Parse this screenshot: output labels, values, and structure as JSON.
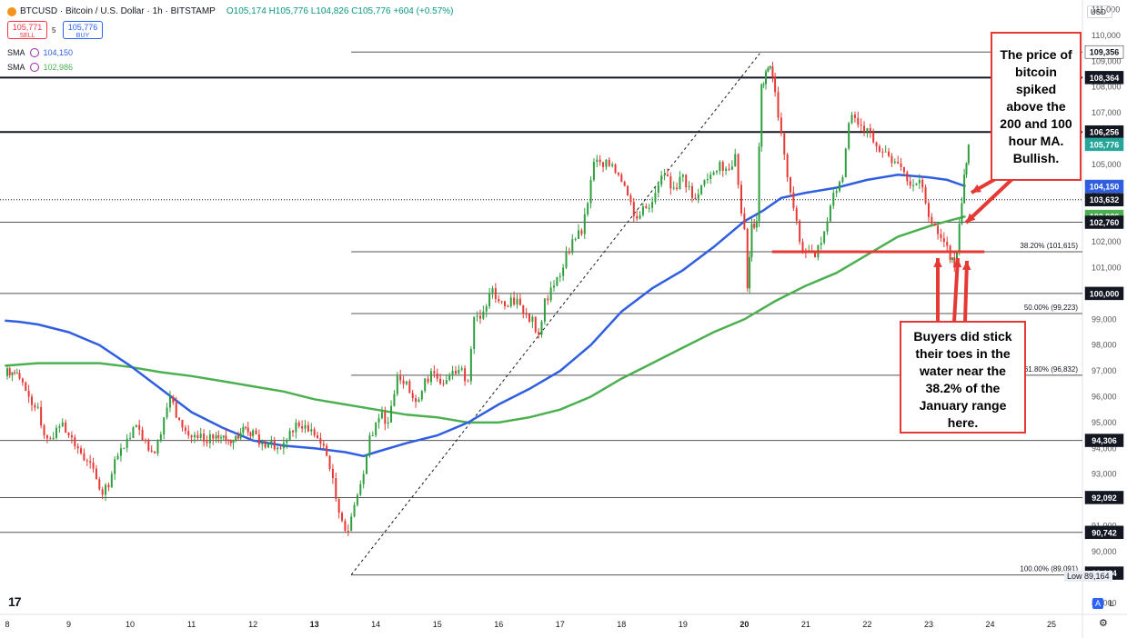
{
  "header": {
    "symbol_line": "BTCUSD · Bitcoin / U.S. Dollar · 1h · BITSTAMP",
    "ohlc": "O105,174 H105,776 L104,826 C105,776 +604 (+0.57%)",
    "sell_price": "105,771",
    "sell_label": "SELL",
    "spread": "5",
    "buy_price": "105,776",
    "buy_label": "BUY",
    "sma1_label": "SMA",
    "sma1_value": "104,150",
    "sma2_label": "SMA",
    "sma2_value": "102,986",
    "currency": "USD"
  },
  "colors": {
    "up": "#26a69a",
    "down": "#ef5350",
    "green_candle": "#2e9e3e",
    "red_candle": "#e53935",
    "sma100": "#2f5fe0",
    "sma200": "#4caf50",
    "annotation": "#e53935"
  },
  "chart_data": {
    "type": "candlestick",
    "x_ticks": [
      "8",
      "9",
      "10",
      "11",
      "12",
      "13",
      "14",
      "15",
      "16",
      "17",
      "18",
      "19",
      "20",
      "21",
      "22",
      "23",
      "24",
      "25"
    ],
    "y_ticks": [
      "111,000",
      "110,000",
      "109,000",
      "108,000",
      "107,000",
      "106,000",
      "105,000",
      "104,000",
      "103,000",
      "102,000",
      "101,000",
      "100,000",
      "99,000",
      "98,000",
      "97,000",
      "96,000",
      "95,000",
      "94,000",
      "93,000",
      "92,000",
      "91,000",
      "90,000",
      "89,000",
      "88,000"
    ],
    "ylim": [
      87600,
      111300
    ],
    "price_series": [
      [
        7.96,
        96800
      ],
      [
        8.0,
        97100
      ],
      [
        8.2,
        96700
      ],
      [
        8.35,
        96000
      ],
      [
        8.5,
        95600
      ],
      [
        8.6,
        94500
      ],
      [
        8.75,
        94400
      ],
      [
        8.9,
        95000
      ],
      [
        9.0,
        94500
      ],
      [
        9.15,
        94000
      ],
      [
        9.3,
        93500
      ],
      [
        9.45,
        92800
      ],
      [
        9.55,
        92200
      ],
      [
        9.7,
        93000
      ],
      [
        9.85,
        94000
      ],
      [
        10.0,
        94400
      ],
      [
        10.1,
        94900
      ],
      [
        10.25,
        94300
      ],
      [
        10.4,
        93800
      ],
      [
        10.55,
        95200
      ],
      [
        10.65,
        96000
      ],
      [
        10.8,
        95100
      ],
      [
        10.95,
        94500
      ],
      [
        11.1,
        94400
      ],
      [
        11.25,
        94200
      ],
      [
        11.4,
        94500
      ],
      [
        11.6,
        94300
      ],
      [
        11.8,
        94600
      ],
      [
        12.0,
        94700
      ],
      [
        12.15,
        94200
      ],
      [
        12.3,
        94300
      ],
      [
        12.45,
        94000
      ],
      [
        12.55,
        94300
      ],
      [
        12.7,
        95000
      ],
      [
        12.85,
        94900
      ],
      [
        13.0,
        94500
      ],
      [
        13.15,
        94100
      ],
      [
        13.25,
        93200
      ],
      [
        13.4,
        91500
      ],
      [
        13.55,
        90800
      ],
      [
        13.65,
        91800
      ],
      [
        13.8,
        93000
      ],
      [
        13.9,
        94500
      ],
      [
        14.0,
        95000
      ],
      [
        14.1,
        95400
      ],
      [
        14.2,
        95000
      ],
      [
        14.35,
        96800
      ],
      [
        14.5,
        96600
      ],
      [
        14.65,
        95800
      ],
      [
        14.8,
        96700
      ],
      [
        14.95,
        96900
      ],
      [
        15.1,
        96500
      ],
      [
        15.25,
        97000
      ],
      [
        15.4,
        97100
      ],
      [
        15.5,
        96600
      ],
      [
        15.6,
        99100
      ],
      [
        15.75,
        99300
      ],
      [
        15.9,
        100200
      ],
      [
        16.0,
        99700
      ],
      [
        16.15,
        99500
      ],
      [
        16.3,
        99800
      ],
      [
        16.45,
        99200
      ],
      [
        16.55,
        99100
      ],
      [
        16.65,
        98400
      ],
      [
        16.75,
        99800
      ],
      [
        16.9,
        100300
      ],
      [
        17.05,
        101000
      ],
      [
        17.2,
        102100
      ],
      [
        17.35,
        102300
      ],
      [
        17.45,
        103500
      ],
      [
        17.55,
        105100
      ],
      [
        17.7,
        104900
      ],
      [
        17.85,
        105000
      ],
      [
        17.95,
        104600
      ],
      [
        18.1,
        103800
      ],
      [
        18.25,
        102900
      ],
      [
        18.4,
        103300
      ],
      [
        18.55,
        103900
      ],
      [
        18.7,
        104600
      ],
      [
        18.85,
        104100
      ],
      [
        19.0,
        104600
      ],
      [
        19.15,
        103700
      ],
      [
        19.3,
        104200
      ],
      [
        19.45,
        104600
      ],
      [
        19.6,
        105100
      ],
      [
        19.75,
        104800
      ],
      [
        19.85,
        105400
      ],
      [
        19.95,
        103100
      ],
      [
        20.0,
        102500
      ],
      [
        20.05,
        100200
      ],
      [
        20.12,
        102700
      ],
      [
        20.2,
        102800
      ],
      [
        20.28,
        108100
      ],
      [
        20.35,
        108600
      ],
      [
        20.42,
        108800
      ],
      [
        20.5,
        107800
      ],
      [
        20.6,
        106200
      ],
      [
        20.7,
        104500
      ],
      [
        20.8,
        103300
      ],
      [
        20.9,
        102000
      ],
      [
        21.0,
        101600
      ],
      [
        21.15,
        101400
      ],
      [
        21.3,
        102400
      ],
      [
        21.45,
        103900
      ],
      [
        21.6,
        104500
      ],
      [
        21.7,
        106600
      ],
      [
        21.8,
        106800
      ],
      [
        21.9,
        106500
      ],
      [
        22.0,
        106400
      ],
      [
        22.15,
        105700
      ],
      [
        22.3,
        105500
      ],
      [
        22.45,
        105100
      ],
      [
        22.6,
        104700
      ],
      [
        22.75,
        104200
      ],
      [
        22.85,
        104400
      ],
      [
        22.95,
        103500
      ],
      [
        23.05,
        102700
      ],
      [
        23.15,
        102300
      ],
      [
        23.25,
        102000
      ],
      [
        23.35,
        101300
      ],
      [
        23.42,
        101000
      ],
      [
        23.5,
        102700
      ],
      [
        23.58,
        104600
      ],
      [
        23.65,
        105776
      ]
    ],
    "sma100": [
      [
        7.96,
        98950
      ],
      [
        8.2,
        98900
      ],
      [
        8.5,
        98800
      ],
      [
        9.0,
        98500
      ],
      [
        9.5,
        98000
      ],
      [
        10.0,
        97200
      ],
      [
        10.5,
        96300
      ],
      [
        11.0,
        95400
      ],
      [
        11.5,
        94800
      ],
      [
        12.0,
        94300
      ],
      [
        12.5,
        94100
      ],
      [
        13.0,
        94000
      ],
      [
        13.5,
        93850
      ],
      [
        13.8,
        93700
      ],
      [
        14.0,
        93850
      ],
      [
        14.5,
        94200
      ],
      [
        15.0,
        94500
      ],
      [
        15.5,
        95000
      ],
      [
        16.0,
        95700
      ],
      [
        16.5,
        96300
      ],
      [
        17.0,
        97000
      ],
      [
        17.5,
        98000
      ],
      [
        18.0,
        99300
      ],
      [
        18.5,
        100200
      ],
      [
        19.0,
        100900
      ],
      [
        19.5,
        101800
      ],
      [
        20.0,
        102800
      ],
      [
        20.3,
        103200
      ],
      [
        20.6,
        103700
      ],
      [
        21.0,
        103900
      ],
      [
        21.5,
        104100
      ],
      [
        22.0,
        104400
      ],
      [
        22.5,
        104600
      ],
      [
        23.0,
        104500
      ],
      [
        23.3,
        104400
      ],
      [
        23.6,
        104150
      ]
    ],
    "sma200": [
      [
        7.96,
        97200
      ],
      [
        8.5,
        97300
      ],
      [
        9.0,
        97300
      ],
      [
        9.5,
        97300
      ],
      [
        10.0,
        97150
      ],
      [
        10.5,
        96950
      ],
      [
        11.0,
        96800
      ],
      [
        11.5,
        96600
      ],
      [
        12.0,
        96400
      ],
      [
        12.5,
        96200
      ],
      [
        13.0,
        95900
      ],
      [
        13.5,
        95700
      ],
      [
        14.0,
        95500
      ],
      [
        14.5,
        95300
      ],
      [
        15.0,
        95200
      ],
      [
        15.5,
        95000
      ],
      [
        16.0,
        95000
      ],
      [
        16.5,
        95200
      ],
      [
        17.0,
        95500
      ],
      [
        17.5,
        96000
      ],
      [
        18.0,
        96700
      ],
      [
        18.5,
        97300
      ],
      [
        19.0,
        97900
      ],
      [
        19.5,
        98500
      ],
      [
        20.0,
        99000
      ],
      [
        20.5,
        99700
      ],
      [
        21.0,
        100300
      ],
      [
        21.5,
        100800
      ],
      [
        22.0,
        101500
      ],
      [
        22.5,
        102200
      ],
      [
        23.0,
        102600
      ],
      [
        23.3,
        102800
      ],
      [
        23.6,
        102986
      ]
    ],
    "horizontal_lines": [
      {
        "value": 108364,
        "label": "108,364",
        "style": "thick"
      },
      {
        "value": 106256,
        "label": "106,256",
        "style": "thick"
      },
      {
        "value": 103632,
        "label": "103,632",
        "style": "dotted"
      },
      {
        "value": 102760,
        "label": "102,760",
        "style": "thin"
      },
      {
        "value": 100000,
        "label": "100,000",
        "style": "thin"
      },
      {
        "value": 94306,
        "label": "94,306",
        "style": "thin"
      },
      {
        "value": 92092,
        "label": "92,092",
        "style": "thin"
      },
      {
        "value": 90742,
        "label": "90,742",
        "style": "thin"
      }
    ],
    "fib_levels": [
      {
        "value": 109356,
        "label": "",
        "price_tag": "109,356"
      },
      {
        "value": 101615,
        "label": "38.20% (101,615)"
      },
      {
        "value": 99223,
        "label": "50.00% (99,223)"
      },
      {
        "value": 96832,
        "label": "61.80% (96,832)"
      },
      {
        "value": 89091,
        "label": "100.00% (89,091)"
      }
    ],
    "price_tags": [
      {
        "value": 109356,
        "label": "109,356",
        "bg": "#ffffff",
        "fg": "#131722"
      },
      {
        "value": 108364,
        "label": "108,364",
        "bg": "#131722",
        "fg": "#ffffff"
      },
      {
        "value": 106256,
        "label": "106,256",
        "bg": "#131722",
        "fg": "#ffffff"
      },
      {
        "value": 105776,
        "label": "105,776",
        "bg": "#26a69a",
        "fg": "#ffffff"
      },
      {
        "value": 104150,
        "label": "104,150",
        "bg": "#2f5fe0",
        "fg": "#ffffff"
      },
      {
        "value": 103632,
        "label": "103,632",
        "bg": "#131722",
        "fg": "#ffffff"
      },
      {
        "value": 102986,
        "label": "102,986",
        "bg": "#4caf50",
        "fg": "#ffffff"
      },
      {
        "value": 102760,
        "label": "102,760",
        "bg": "#131722",
        "fg": "#ffffff"
      },
      {
        "value": 100000,
        "label": "100,000",
        "bg": "#131722",
        "fg": "#ffffff"
      },
      {
        "value": 94306,
        "label": "94,306",
        "bg": "#131722",
        "fg": "#ffffff"
      },
      {
        "value": 92092,
        "label": "92,092",
        "bg": "#131722",
        "fg": "#ffffff"
      },
      {
        "value": 90742,
        "label": "90,742",
        "bg": "#131722",
        "fg": "#ffffff"
      },
      {
        "value": 89164,
        "label": "89,164",
        "bg": "#131722",
        "fg": "#ffffff"
      }
    ],
    "low_label": "Low",
    "low_value": "89,164",
    "trendline": {
      "from": [
        13.6,
        89100
      ],
      "to": [
        20.25,
        109300
      ]
    },
    "support_line": {
      "from": [
        20.45,
        101615
      ],
      "to": [
        24.5,
        101615
      ]
    }
  },
  "annotations": {
    "top": "The price of bitcoin spiked above the 200 and 100 hour MA. Bullish.",
    "bottom": "Buyers did stick their toes in the water near the 38.2% of the January range here."
  },
  "footer": {
    "auto_btn": "A",
    "log_btn": "L"
  }
}
